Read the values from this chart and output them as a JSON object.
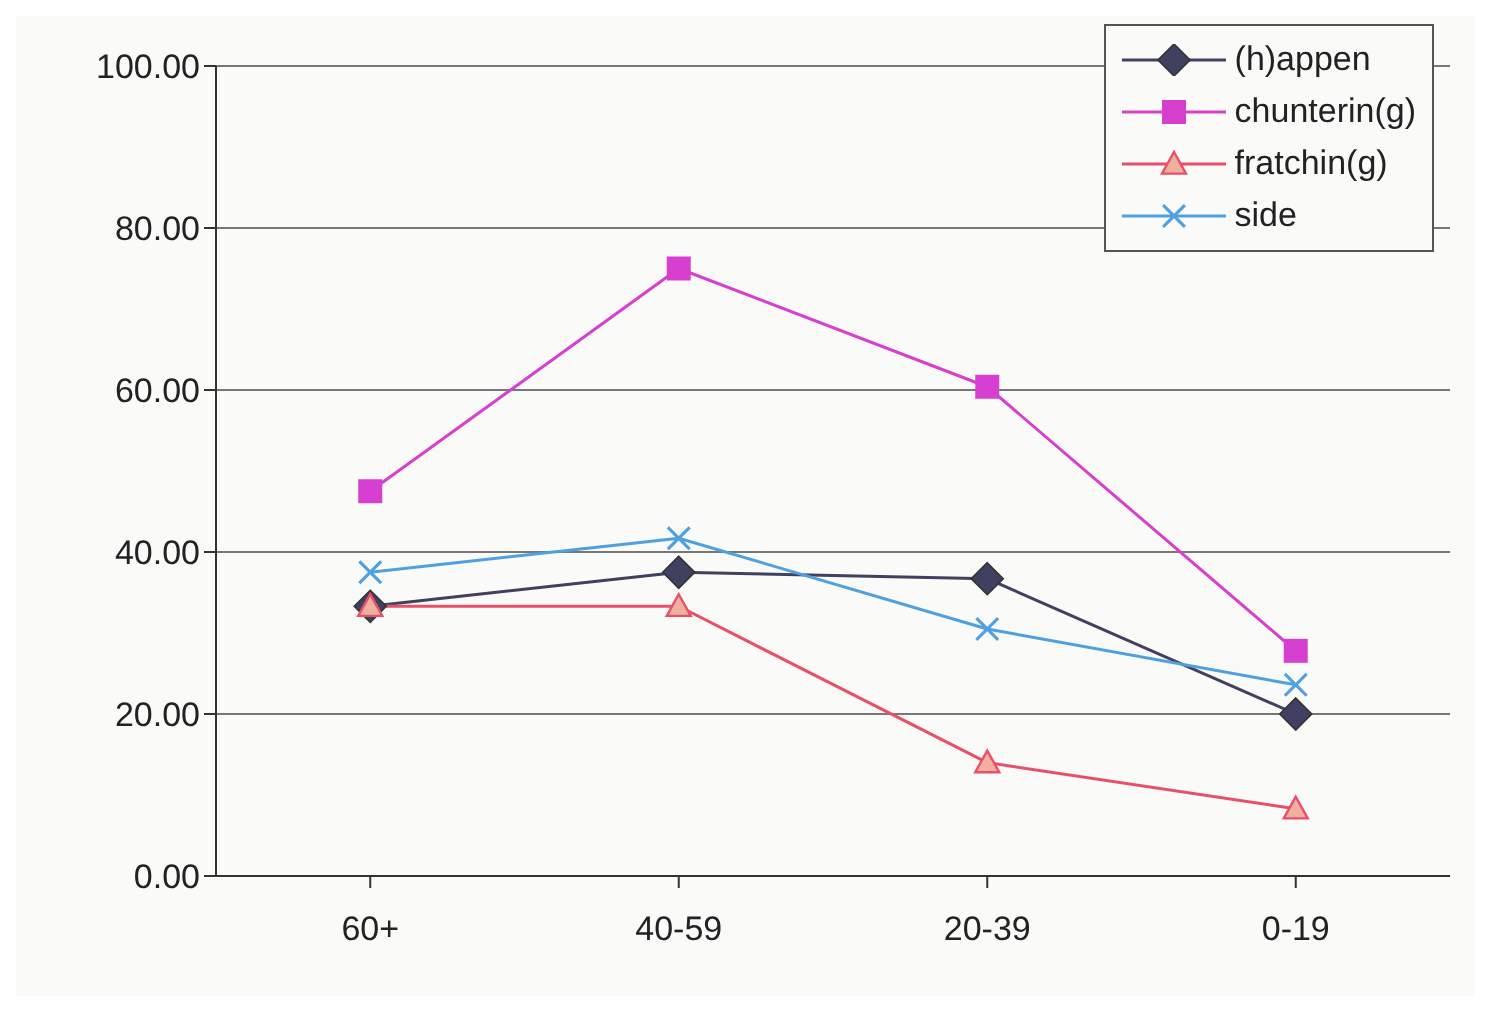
{
  "chart_data": {
    "type": "line",
    "categories": [
      "60+",
      "40-59",
      "20-39",
      "0-19"
    ],
    "series": [
      {
        "name": "(h)appen",
        "color": "#404060",
        "marker": "diamond",
        "values": [
          33.3,
          37.5,
          36.7,
          20.0
        ]
      },
      {
        "name": "chunterin(g)",
        "color": "#d63fd0",
        "marker": "square",
        "values": [
          47.5,
          75.0,
          60.4,
          27.8
        ]
      },
      {
        "name": "fratchin(g)",
        "color": "#e8506a",
        "marker": "triangle",
        "values": [
          33.3,
          33.3,
          14.0,
          8.3
        ]
      },
      {
        "name": "side",
        "color": "#4fa0e0",
        "marker": "cross",
        "values": [
          37.5,
          41.7,
          30.5,
          23.6
        ]
      }
    ],
    "ylim": [
      0,
      100
    ],
    "yticks": [
      {
        "value": 0,
        "label": "0.00"
      },
      {
        "value": 20,
        "label": "20.00"
      },
      {
        "value": 40,
        "label": "40.00"
      },
      {
        "value": 60,
        "label": "60.00"
      },
      {
        "value": 80,
        "label": "80.00"
      },
      {
        "value": 100,
        "label": "100.00"
      }
    ],
    "grid": "y",
    "legend": "top right",
    "line_style": "solid"
  }
}
